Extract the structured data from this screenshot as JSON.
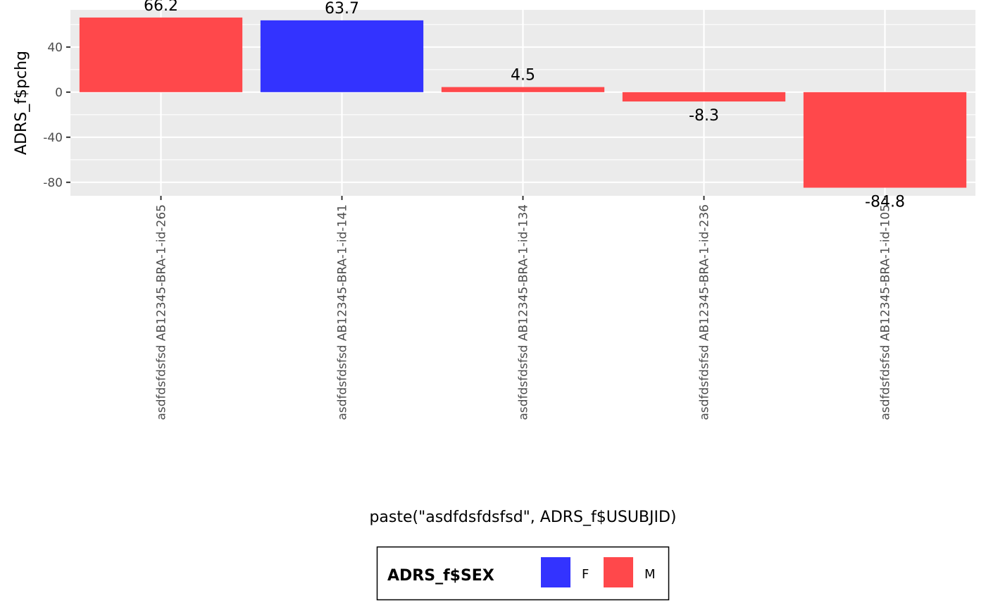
{
  "chart_data": {
    "type": "bar",
    "title": "",
    "xlabel": "paste(\"asdfdsfdsfsd\", ADRS_f$USUBJID)",
    "ylabel": "ADRS_f$pchg",
    "categories": [
      "asdfdsfdsfsd AB12345-BRA-1-id-265",
      "asdfdsfdsfsd AB12345-BRA-1-id-141",
      "asdfdsfdsfsd AB12345-BRA-1-id-134",
      "asdfdsfdsfsd AB12345-BRA-1-id-236",
      "asdfdsfdsfsd AB12345-BRA-1-id-105"
    ],
    "values": [
      66.2,
      63.7,
      4.5,
      -8.3,
      -84.8
    ],
    "labels": [
      "66.2",
      "63.7",
      "4.5",
      "-8.3",
      "-84.8"
    ],
    "sex": [
      "M",
      "F",
      "M",
      "M",
      "M"
    ],
    "ylim": [
      -92,
      73
    ],
    "yticks": [
      40,
      0,
      -40,
      -80
    ],
    "yminor": [
      60,
      20,
      -20,
      -60
    ],
    "grid": true,
    "legend": {
      "title": "ADRS_f$SEX",
      "position": "bottom",
      "entries": [
        {
          "name": "F",
          "color": "#3333FF"
        },
        {
          "name": "M",
          "color": "#FF484B"
        }
      ]
    }
  }
}
